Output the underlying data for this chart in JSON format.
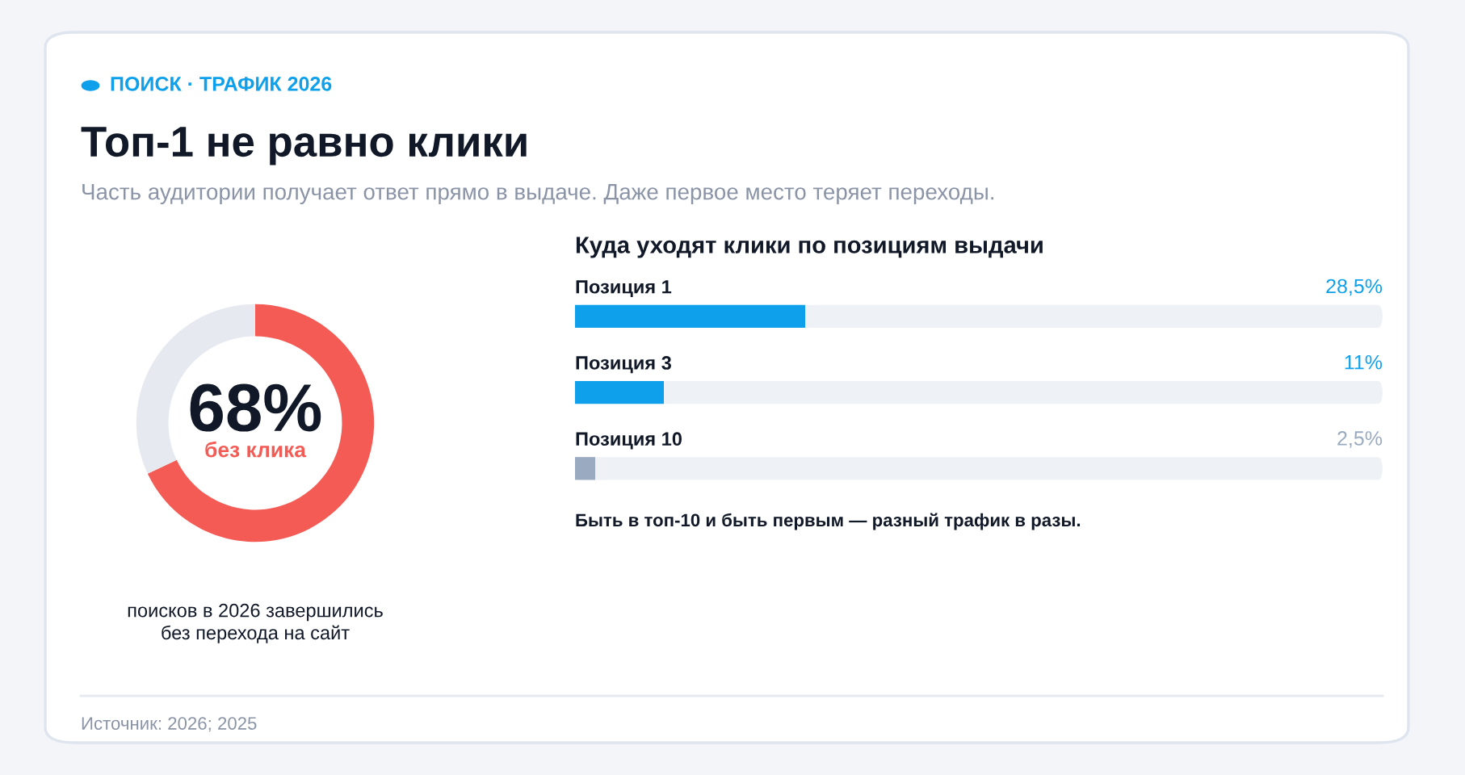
{
  "chart_data": [
    {
      "type": "donut",
      "title": "Топ-1 не равно клики",
      "subtitle": "Часть аудитории получает ответ прямо в выдаче. Даже первое место теряет переходы.",
      "categories": [
        "без клика",
        null
      ],
      "values": [
        68,
        32
      ],
      "colors": [
        "#f45b55",
        "#e6eaf0"
      ],
      "value_labels": [
        "68%",
        null
      ],
      "annotations": [
        "ПОИСК · ТРАФИК 2026",
        "поисков в 2026 завершились\nбез перехода на сайт",
        "Источник: 2026; 2025"
      ]
    },
    {
      "type": "bar",
      "orientation": "horizontal",
      "title": "Куда уходят клики по позициям выдачи",
      "categories": [
        "Позиция 1",
        "Позиция 3",
        "Позиция 10"
      ],
      "values": [
        28.5,
        11,
        2.5
      ],
      "colors": [
        "#0ea0ea",
        "#0ea0ea",
        "#9aaac0"
      ],
      "value_labels": [
        "28,5%",
        "11%",
        "2,5%"
      ],
      "xlim": [
        0,
        100
      ],
      "tick_labels": false,
      "annotations": [
        "Быть в топ-10 и быть первым — разный трафик в разы."
      ]
    }
  ]
}
